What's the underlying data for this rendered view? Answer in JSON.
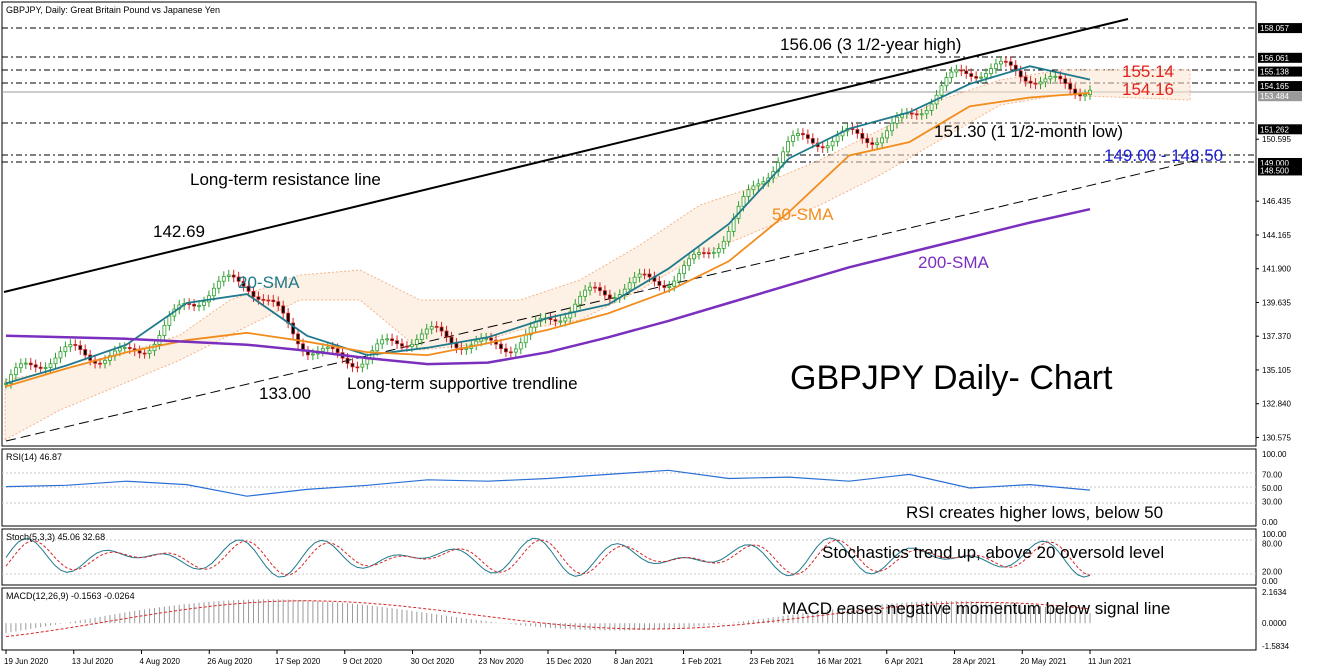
{
  "chart_data": {
    "type": "line",
    "symbol": "GBPJPY",
    "main_panel": {
      "header": "GBPJPY, Daily:  Great Britain Pound vs Japanese Yen",
      "y_ticks": [
        "158.057",
        "156.061",
        "155.138",
        "154.165",
        "153.484",
        "151.262",
        "150.595",
        "149.000",
        "148.500",
        "146.435",
        "144.165",
        "141.900",
        "139.635",
        "137.370",
        "135.105",
        "132.840",
        "130.575"
      ],
      "highlight_levels": [
        "158.057",
        "156.061",
        "155.138",
        "154.165",
        "151.262",
        "149.000",
        "148.500"
      ],
      "current_price": "153.484",
      "x_labels": [
        "19 Jun 2020",
        "13 Jul 2020",
        "4 Aug 2020",
        "26 Aug 2020",
        "17 Sep 2020",
        "9 Oct 2020",
        "30 Oct 2020",
        "23 Nov 2020",
        "15 Dec 2020",
        "8 Jan 2021",
        "1 Feb 2021",
        "23 Feb 2021",
        "16 Mar 2021",
        "6 Apr 2021",
        "28 Apr 2021",
        "20 May 2021",
        "11 Jun 2021"
      ],
      "series": [
        {
          "name": "20-SMA",
          "color": "#1f7a8c",
          "values": [
            134.2,
            135.4,
            136.8,
            139.6,
            140.2,
            137.4,
            136.1,
            136.6,
            137.3,
            138.6,
            139.5,
            141.9,
            144.9,
            149.3,
            151.3,
            152.4,
            154.3,
            155.5,
            154.6
          ]
        },
        {
          "name": "50-SMA",
          "color": "#f28c1b",
          "values": [
            134.0,
            135.2,
            136.3,
            137.1,
            137.6,
            137.0,
            136.3,
            136.1,
            136.9,
            137.8,
            138.9,
            140.4,
            142.4,
            145.7,
            149.5,
            150.4,
            152.8,
            153.4,
            153.7
          ]
        },
        {
          "name": "200-SMA",
          "color": "#7b2fbe",
          "values": [
            137.4,
            137.3,
            137.2,
            137.0,
            136.8,
            136.4,
            135.9,
            135.5,
            135.6,
            136.3,
            137.3,
            138.4,
            139.6,
            140.8,
            142.0,
            143.0,
            144.0,
            145.0,
            145.9
          ]
        },
        {
          "name": "RSI(14)",
          "color": "#2a6fd6",
          "values": [
            52,
            54,
            60,
            55,
            38,
            48,
            54,
            62,
            60,
            64,
            70,
            76,
            64,
            66,
            60,
            70,
            50,
            55,
            46.87
          ]
        }
      ],
      "annotations": {
        "high_3y": "156.06 (3 1/2-year high)",
        "level_red_1": "155.14",
        "level_red_2": "154.16",
        "low_1m": "151.30 (1 1/2-month low)",
        "support_zone": "149.00 - 148.50",
        "resistance_line": "Long-term resistance line",
        "peak_label": "142.69",
        "sma20_label": "20-SMA",
        "sma50_label": "50-SMA",
        "sma200_label": "200-SMA",
        "trough_label": "133.00",
        "support_line": "Long-term supportive trendline",
        "chart_title": "GBPJPY Daily- Chart"
      }
    },
    "rsi_panel": {
      "header": "RSI(14) 46.87",
      "y_ticks": [
        "100.00",
        "70.00",
        "50.00",
        "30.00",
        "0.00"
      ],
      "note": "RSI creates higher lows, below 50"
    },
    "stoch_panel": {
      "header": "Stoch(5,3,3) 45.06 32.68",
      "y_ticks": [
        "100.00",
        "80.00",
        "20.00",
        "0.00"
      ],
      "note": "Stochastics trend up, above 20 oversold level"
    },
    "macd_panel": {
      "header": "MACD(12,26,9) -0.1563 -0.0264",
      "y_ticks": [
        "2.1634",
        "0.0000",
        "-1.5834"
      ],
      "note": "MACD eases negative momentum below signal line"
    },
    "colors": {
      "resistance_line": "#000000",
      "sma20": "#1f7a8c",
      "sma50": "#f28c1b",
      "sma200": "#7b2fbe",
      "red_levels": "#e3201b",
      "blue_zone": "#1a1ad6",
      "rsi_line": "#2a6fd6",
      "price_up": "#2ca02c",
      "price_down": "#d62728"
    }
  }
}
